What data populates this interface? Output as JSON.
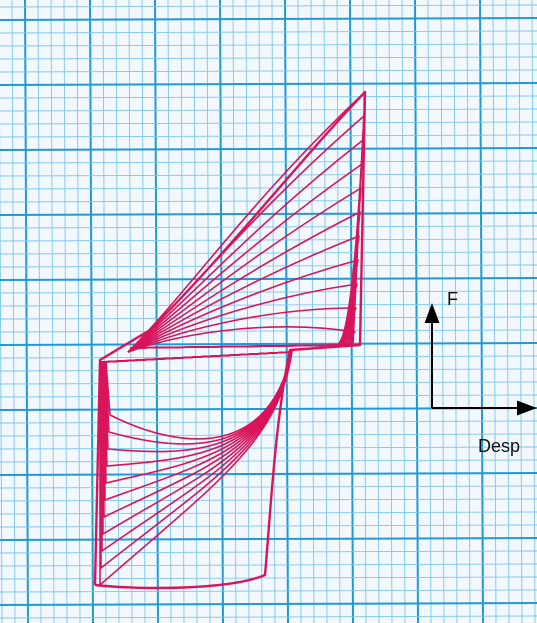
{
  "labels": {
    "force": "F",
    "displacement": "Desp"
  }
}
